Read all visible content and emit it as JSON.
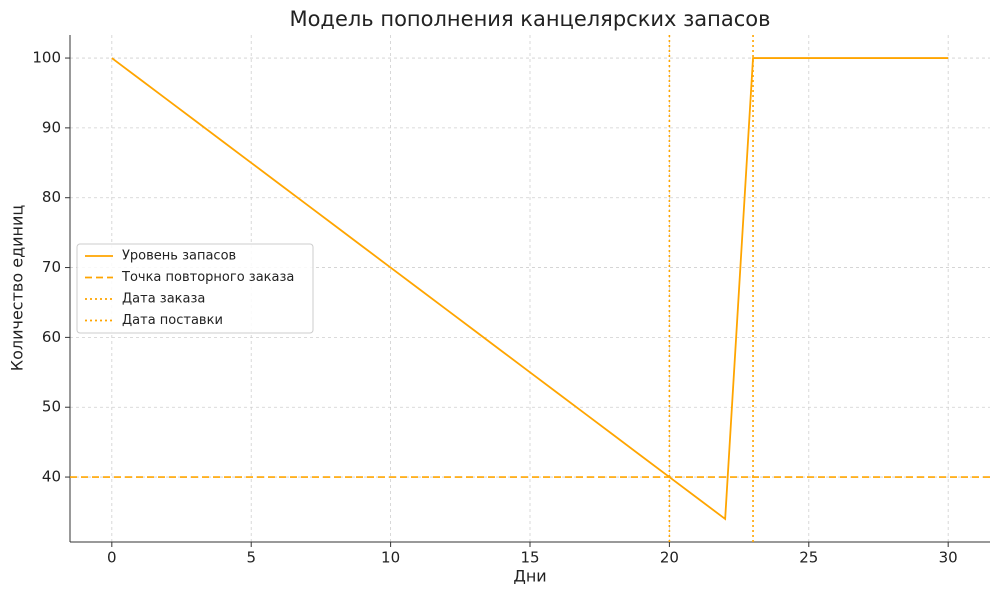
{
  "chart_data": {
    "type": "line",
    "title": "Модель пополнения канцелярских запасов",
    "x_label": "Дни",
    "y_label": "Количество единиц",
    "x": [
      0,
      1,
      2,
      3,
      4,
      5,
      6,
      7,
      8,
      9,
      10,
      11,
      12,
      13,
      14,
      15,
      16,
      17,
      18,
      19,
      20,
      21,
      22,
      23,
      24,
      25,
      26,
      27,
      28,
      29,
      30
    ],
    "series": [
      {
        "name": "Уровень запасов",
        "color": "#ffa500",
        "values": [
          100,
          97,
          94,
          91,
          88,
          85,
          82,
          79,
          76,
          73,
          70,
          67,
          64,
          61,
          58,
          55,
          52,
          49,
          46,
          43,
          40,
          37,
          34,
          100,
          100,
          100,
          100,
          100,
          100,
          100,
          100
        ]
      }
    ],
    "hlines": [
      {
        "name": "Точка повторного заказа",
        "value": 40,
        "color": "#ffa500",
        "style": "dashed"
      }
    ],
    "vlines": [
      {
        "name": "Дата заказа",
        "value": 20,
        "color": "#ffa500",
        "style": "dotted"
      },
      {
        "name": "Дата поставки",
        "value": 23,
        "color": "#ffa500",
        "style": "dotted"
      }
    ],
    "xlim": [
      -1.5,
      31.5
    ],
    "ylim": [
      30.7,
      103.3
    ],
    "xticks": [
      0,
      5,
      10,
      15,
      20,
      25,
      30
    ],
    "yticks": [
      40,
      50,
      60,
      70,
      80,
      90,
      100
    ],
    "grid": true,
    "legend": "center left"
  }
}
